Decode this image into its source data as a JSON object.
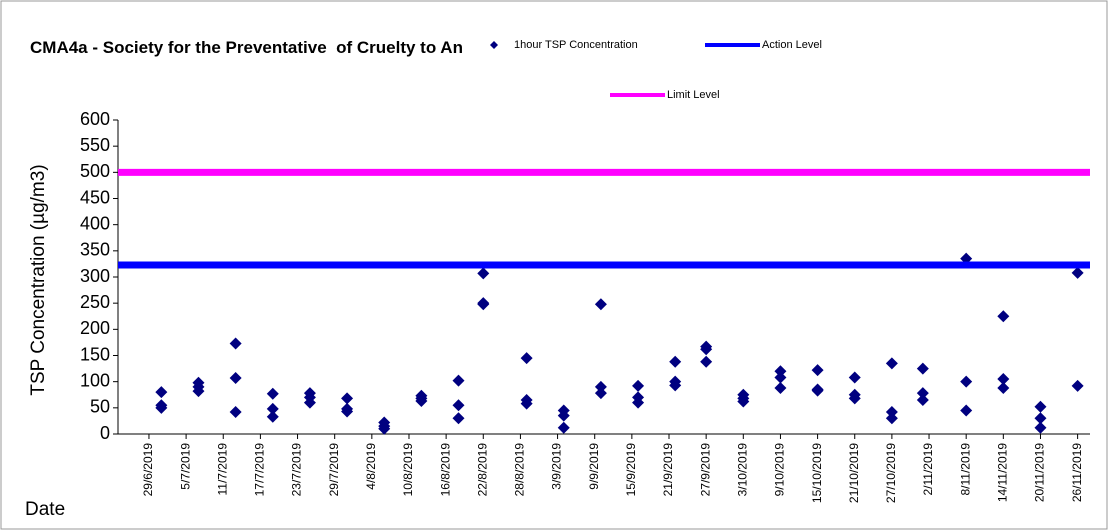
{
  "chart_data": {
    "type": "scatter",
    "title": "CMA4a - Society for the Preventative  of Cruelty to An",
    "y_label": "TSP Concentration (µg/m3)",
    "x_label": "Date",
    "xlim": [
      "24/6/2019",
      "28/11/2019"
    ],
    "xticks": [
      "29/6/2019",
      "5/7/2019",
      "11/7/2019",
      "17/7/2019",
      "23/7/2019",
      "29/7/2019",
      "4/8/2019",
      "10/8/2019",
      "16/8/2019",
      "22/8/2019",
      "28/8/2019",
      "3/9/2019",
      "9/9/2019",
      "15/9/2019",
      "21/9/2019",
      "27/9/2019",
      "3/10/2019",
      "9/10/2019",
      "15/10/2019",
      "21/10/2019",
      "27/10/2019",
      "2/11/2019",
      "8/11/2019",
      "14/11/2019",
      "20/11/2019",
      "26/11/2019"
    ],
    "ylim": [
      0,
      600
    ],
    "yticks": [
      0,
      50,
      100,
      150,
      200,
      250,
      300,
      350,
      400,
      450,
      500,
      550,
      600
    ],
    "grid": false,
    "series": [
      {
        "name": "1hour TSP Concentration",
        "color": "#000080",
        "type": "scatter",
        "x": [
          "1/7/2019",
          "1/7/2019",
          "1/7/2019",
          "7/7/2019",
          "7/7/2019",
          "7/7/2019",
          "13/7/2019",
          "13/7/2019",
          "13/7/2019",
          "19/7/2019",
          "19/7/2019",
          "19/7/2019",
          "25/7/2019",
          "25/7/2019",
          "25/7/2019",
          "31/7/2019",
          "31/7/2019",
          "31/7/2019",
          "6/8/2019",
          "6/8/2019",
          "6/8/2019",
          "12/8/2019",
          "12/8/2019",
          "12/8/2019",
          "18/8/2019",
          "18/8/2019",
          "18/8/2019",
          "22/8/2019",
          "22/8/2019",
          "22/8/2019",
          "29/8/2019",
          "29/8/2019",
          "29/8/2019",
          "4/9/2019",
          "4/9/2019",
          "4/9/2019",
          "10/9/2019",
          "10/9/2019",
          "10/9/2019",
          "16/9/2019",
          "16/9/2019",
          "16/9/2019",
          "22/9/2019",
          "22/9/2019",
          "22/9/2019",
          "27/9/2019",
          "27/9/2019",
          "27/9/2019",
          "3/10/2019",
          "3/10/2019",
          "3/10/2019",
          "9/10/2019",
          "9/10/2019",
          "9/10/2019",
          "15/10/2019",
          "15/10/2019",
          "15/10/2019",
          "21/10/2019",
          "21/10/2019",
          "21/10/2019",
          "27/10/2019",
          "27/10/2019",
          "27/10/2019",
          "1/11/2019",
          "1/11/2019",
          "1/11/2019",
          "8/11/2019",
          "8/11/2019",
          "8/11/2019",
          "14/11/2019",
          "14/11/2019",
          "14/11/2019",
          "20/11/2019",
          "20/11/2019",
          "20/11/2019",
          "26/11/2019",
          "26/11/2019"
        ],
        "values": [
          80,
          55,
          50,
          98,
          90,
          82,
          173,
          107,
          42,
          77,
          48,
          33,
          78,
          70,
          60,
          68,
          48,
          43,
          22,
          15,
          10,
          73,
          68,
          63,
          102,
          55,
          30,
          307,
          250,
          248,
          145,
          65,
          58,
          45,
          35,
          12,
          248,
          90,
          78,
          92,
          70,
          60,
          138,
          100,
          93,
          167,
          162,
          138,
          75,
          68,
          62,
          120,
          108,
          88,
          122,
          85,
          83,
          108,
          75,
          68,
          135,
          42,
          30,
          125,
          78,
          65,
          335,
          100,
          45,
          225,
          105,
          88,
          52,
          30,
          12,
          308,
          92
        ]
      },
      {
        "name": "Action Level",
        "color": "#0000ff",
        "type": "line",
        "x": [
          "24/6/2019",
          "28/11/2019"
        ],
        "values": [
          323,
          323
        ]
      },
      {
        "name": "Limit Level",
        "color": "#ff00ff",
        "type": "line",
        "x": [
          "24/6/2019",
          "28/11/2019"
        ],
        "values": [
          500,
          500
        ]
      }
    ]
  }
}
